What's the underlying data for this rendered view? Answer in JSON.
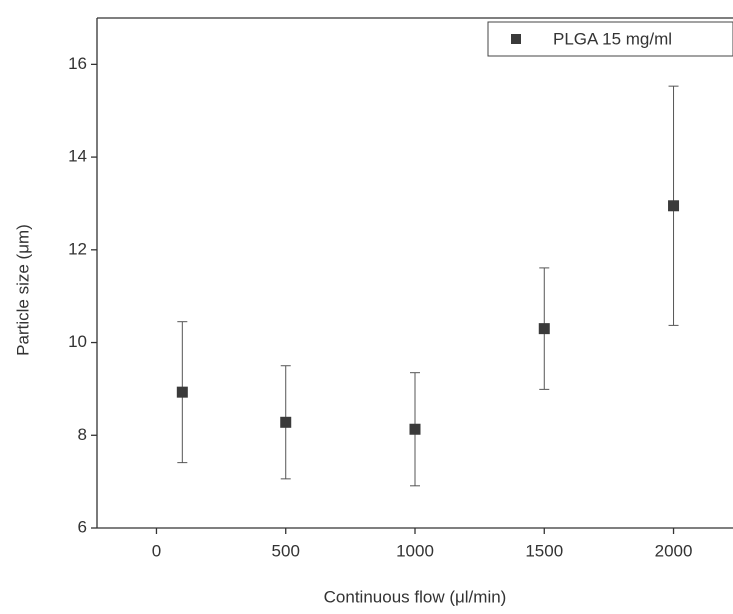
{
  "chart_data": {
    "type": "scatter",
    "x_label": "Continuous flow (μl/min)",
    "y_label": "Particle size (μm)",
    "series": [
      {
        "name": "PLGA 15 mg/ml",
        "color": "#3a3a3a",
        "x": [
          100,
          500,
          1000,
          1500,
          2000
        ],
        "values": [
          8.93,
          8.28,
          8.13,
          10.3,
          12.95
        ],
        "errors": [
          1.52,
          1.22,
          1.22,
          1.31,
          2.58
        ]
      }
    ],
    "xlim": [
      -230,
      2230
    ],
    "xticks": [
      0,
      500,
      1000,
      1500,
      2000
    ],
    "ylim": [
      6,
      17
    ],
    "yticks": [
      6,
      8,
      10,
      12,
      14,
      16
    ],
    "legend": "upper-right"
  }
}
